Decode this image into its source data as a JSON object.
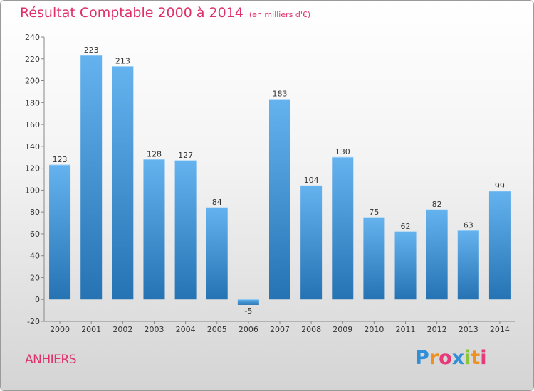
{
  "chart_data": {
    "type": "bar",
    "title": "Résultat Comptable 2000 à 2014",
    "unit": "(en milliers d'€)",
    "categories": [
      "2000",
      "2001",
      "2002",
      "2003",
      "2004",
      "2005",
      "2006",
      "2007",
      "2008",
      "2009",
      "2010",
      "2011",
      "2012",
      "2013",
      "2014"
    ],
    "values": [
      123,
      223,
      213,
      128,
      127,
      84,
      -5,
      183,
      104,
      130,
      75,
      62,
      82,
      63,
      99
    ],
    "data_labels": [
      "123",
      "223",
      "213",
      "128",
      "127",
      "84",
      "-5",
      "183",
      "104",
      "130",
      "75",
      "62",
      "82",
      "63",
      "99"
    ],
    "yticks": [
      "-20",
      "0",
      "20",
      "40",
      "60",
      "80",
      "100",
      "120",
      "140",
      "160",
      "180",
      "200",
      "220",
      "240"
    ],
    "ylim": [
      -20,
      240
    ],
    "grid": false,
    "legend": "none",
    "colors": {
      "bar_light": "#62b0ec",
      "bar_dark": "#2674b5",
      "axis": "#888888",
      "text": "#333333"
    }
  },
  "commune": "ANHIERS",
  "logo": {
    "text": "Proxiti",
    "letters": [
      {
        "char": "P",
        "color": "#2f8fd8"
      },
      {
        "char": "r",
        "color": "#f09020"
      },
      {
        "char": "o",
        "color": "#e83a7a"
      },
      {
        "char": "x",
        "color": "#2f8fd8"
      },
      {
        "char": "i",
        "color": "#8cc43a"
      },
      {
        "char": "t",
        "color": "#f09020"
      },
      {
        "char": "i",
        "color": "#e83a7a"
      }
    ]
  }
}
